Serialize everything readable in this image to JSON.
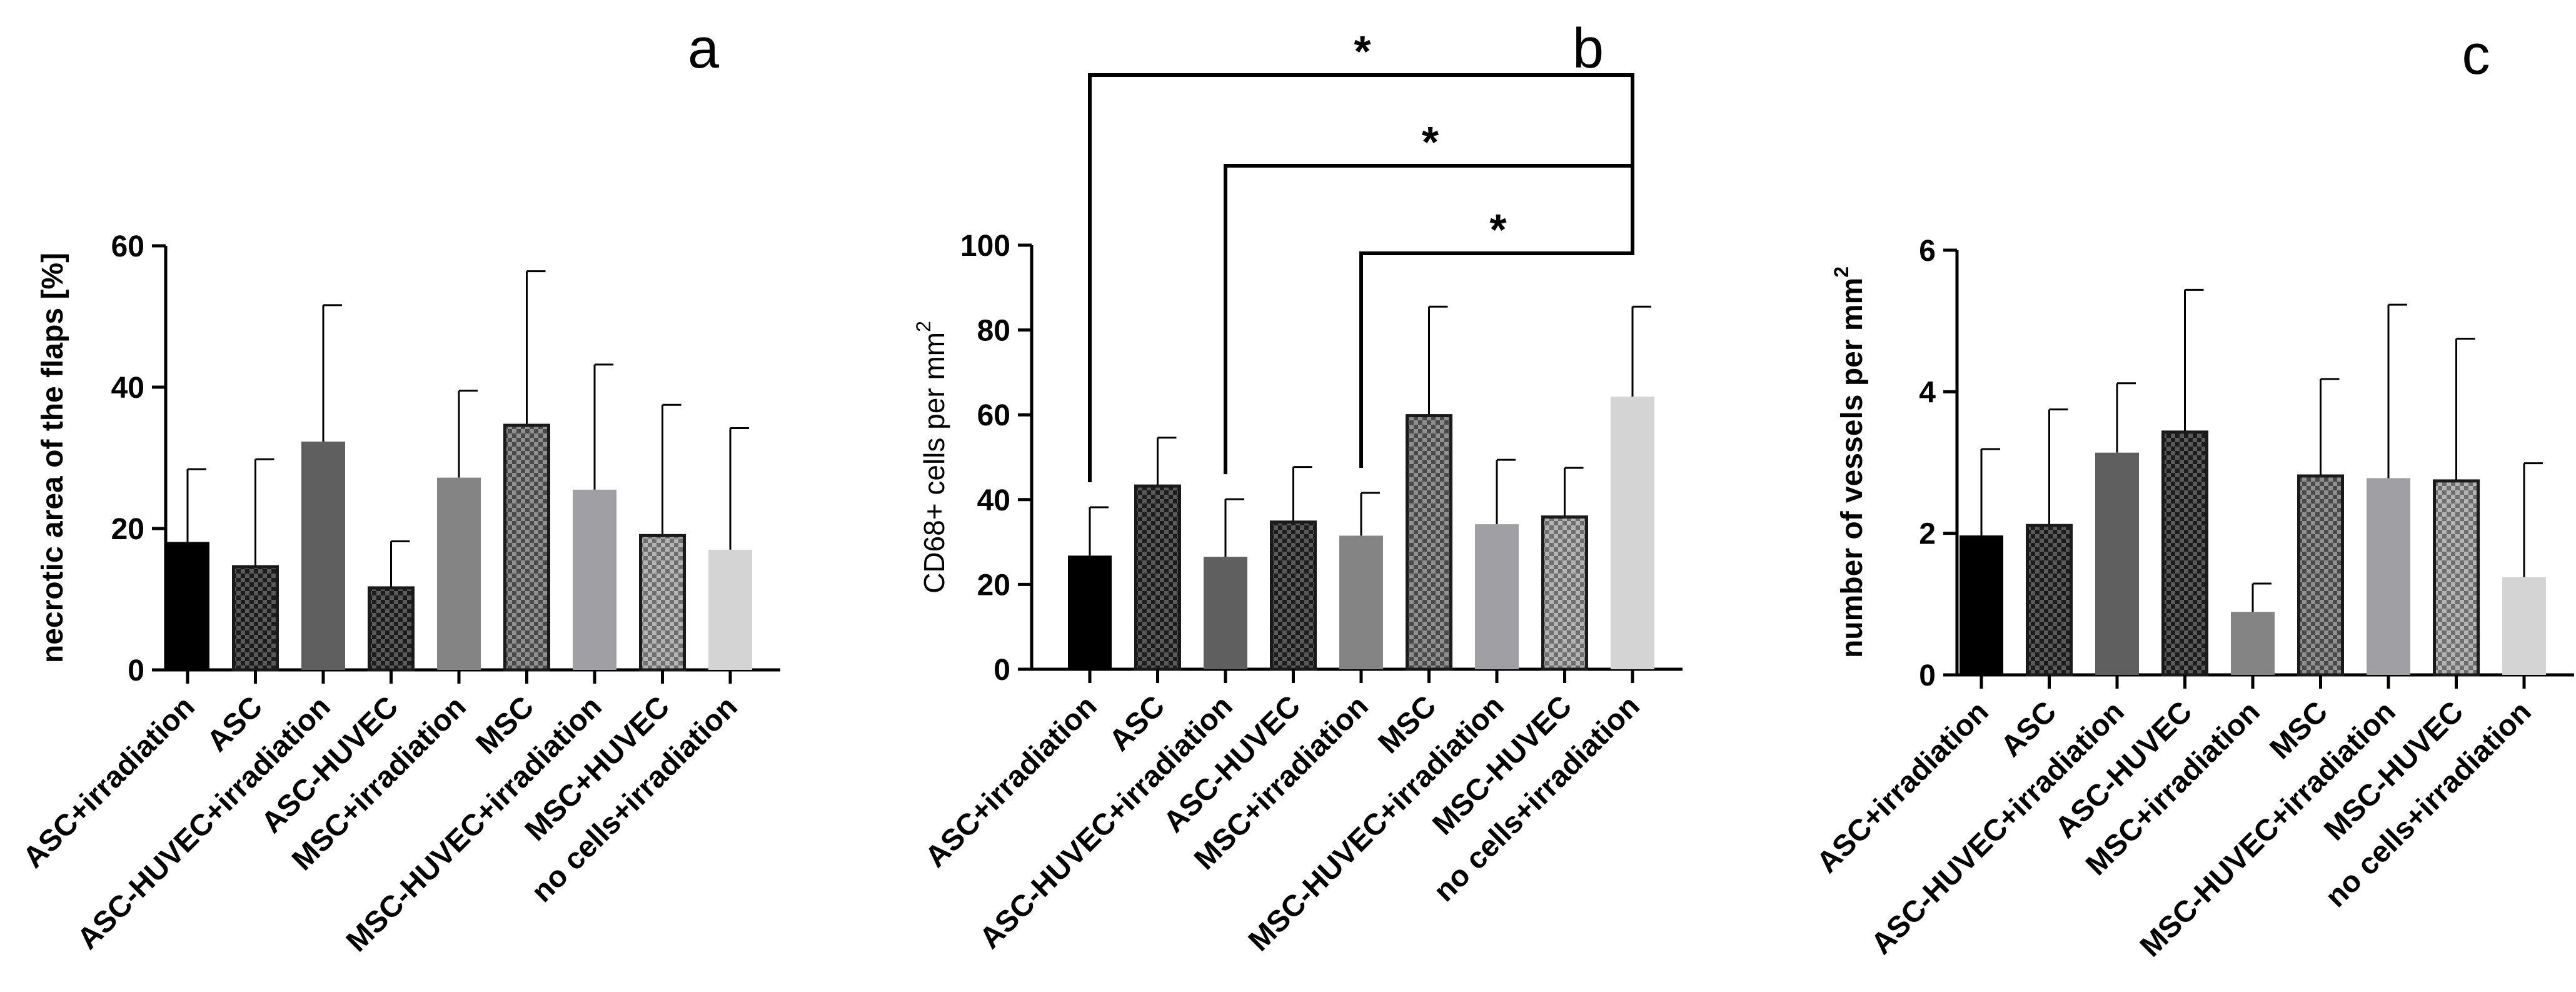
{
  "colors": {
    "black": "#000000",
    "dark_check": "#3a3a3a",
    "dark_gray": "#5f5f5f",
    "mid_gray": "#848484",
    "light_gray": "#a0a0a4",
    "lighter_check": "#8c8c8c",
    "very_light": "#d4d4d4"
  },
  "chart_data": [
    {
      "type": "bar",
      "panel": "a",
      "title": "",
      "xlabel": "",
      "ylabel": "necrotic area of the flaps [%]",
      "ylim": [
        0,
        60
      ],
      "yticks": [
        0,
        20,
        40,
        60
      ],
      "categories": [
        "ASC+irradiation",
        "ASC",
        "ASC-HUVEC+irradiation",
        "ASC-HUVEC",
        "MSC+irradiation",
        "MSC",
        "MSC-HUVEC+irradiation",
        "MSC+HUVEC",
        "no cells+irradiation"
      ],
      "values": [
        18.1,
        14.6,
        32.3,
        11.6,
        27.2,
        34.6,
        25.5,
        19.0,
        17.0
      ],
      "error_upper": [
        28.4,
        29.8,
        51.6,
        18.2,
        39.5,
        56.4,
        43.2,
        37.5,
        34.2
      ],
      "fills": [
        "solid-black",
        "check-dark",
        "solid-dark",
        "check-dark",
        "solid-mid",
        "check-mid",
        "solid-light",
        "check-light",
        "solid-verylight"
      ]
    },
    {
      "type": "bar",
      "panel": "b",
      "title": "",
      "xlabel": "",
      "ylabel": "CD68+ cells per mm",
      "ylabel_superscript": "2",
      "ylim": [
        0,
        100
      ],
      "yticks": [
        0,
        20,
        40,
        60,
        80,
        100
      ],
      "categories": [
        "ASC+irradiation",
        "ASC",
        "ASC-HUVEC+irradiation",
        "ASC-HUVEC",
        "MSC+irradiation",
        "MSC",
        "MSC-HUVEC+irradiation",
        "MSC-HUVEC",
        "no cells+irradiation"
      ],
      "values": [
        26.8,
        43.2,
        26.5,
        34.7,
        31.5,
        59.8,
        34.2,
        35.9,
        64.3
      ],
      "error_upper": [
        38.2,
        54.6,
        40.1,
        47.7,
        41.6,
        85.5,
        49.4,
        47.5,
        85.5
      ],
      "fills": [
        "solid-black",
        "check-dark",
        "solid-dark",
        "check-dark",
        "solid-mid",
        "check-mid",
        "solid-light",
        "check-light",
        "solid-verylight"
      ],
      "significance": [
        {
          "from": "ASC+irradiation",
          "to": "no cells+irradiation",
          "label": "*"
        },
        {
          "from": "ASC-HUVEC+irradiation",
          "to": "no cells+irradiation",
          "label": "*"
        },
        {
          "from": "MSC+irradiation",
          "to": "no cells+irradiation",
          "label": "*"
        }
      ]
    },
    {
      "type": "bar",
      "panel": "c",
      "title": "",
      "xlabel": "",
      "ylabel": "number of vessels per mm",
      "ylabel_superscript": "2",
      "ylim": [
        0,
        6
      ],
      "yticks": [
        0,
        2,
        4,
        6
      ],
      "categories": [
        "ASC+irradiation",
        "ASC",
        "ASC-HUVEC+irradiation",
        "ASC-HUVEC",
        "MSC+irradiation",
        "MSC",
        "MSC-HUVEC+irradiation",
        "MSC-HUVEC",
        "no cells+irradiation"
      ],
      "values": [
        1.97,
        2.11,
        3.14,
        3.43,
        0.89,
        2.81,
        2.78,
        2.74,
        1.38
      ],
      "error_upper": [
        3.19,
        3.75,
        4.12,
        5.44,
        1.29,
        4.18,
        5.23,
        4.75,
        2.99
      ],
      "fills": [
        "solid-black",
        "check-dark",
        "solid-dark",
        "check-dark",
        "solid-mid",
        "check-mid",
        "solid-light",
        "check-light",
        "solid-verylight"
      ]
    }
  ]
}
